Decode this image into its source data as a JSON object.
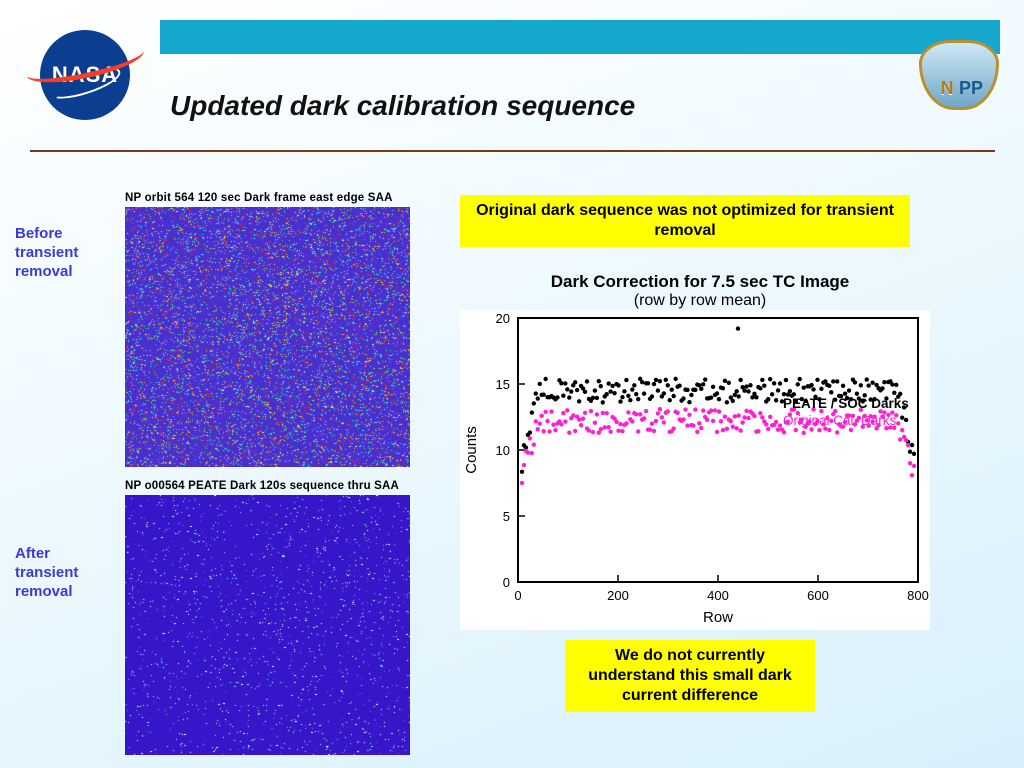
{
  "header": {
    "title": "Updated dark calibration sequence",
    "topbar_color": "#16a7cd",
    "rule_color": "#7a3a10"
  },
  "logos": {
    "nasa_text": "NASA",
    "npp_text_left": "N",
    "npp_text_mid": "PP"
  },
  "labels": {
    "before": "Before transient removal",
    "after": "After transient removal"
  },
  "images": {
    "before_title": "NP orbit 564 120 sec Dark frame east edge SAA",
    "after_title": "NP o00564 PEATE Dark 120s sequence thru SAA",
    "before": {
      "base_color": "#4a2fd0",
      "speckle_density": 0.55,
      "speckle_colors": [
        "#ff3020",
        "#ffb000",
        "#30e0ff",
        "#20ff90",
        "#f0f060",
        "#6040ff",
        "#2040c0"
      ]
    },
    "after": {
      "base_color": "#3616c8",
      "speckle_density": 0.08,
      "speckle_colors": [
        "#60d0ff",
        "#a0ffe0",
        "#ffffff",
        "#8060ff"
      ]
    }
  },
  "callouts": {
    "top": "Original dark sequence was not optimized for transient removal",
    "bottom": "We do not currently understand this small dark current difference",
    "bg": "#ffff00"
  },
  "chart": {
    "type": "scatter",
    "title": "Dark Correction for 7.5 sec TC Image",
    "subtitle": "(row by row mean)",
    "xlabel": "Row",
    "ylabel": "Counts",
    "xlim": [
      0,
      800
    ],
    "ylim": [
      0,
      20
    ],
    "xticks": [
      0,
      200,
      400,
      600,
      800
    ],
    "yticks": [
      0,
      5,
      10,
      15,
      20
    ],
    "tick_fontsize": 13,
    "label_fontsize": 15,
    "title_fontsize": 17,
    "background_color": "#ffffff",
    "axis_color": "#000000",
    "marker_size": 2.2,
    "series": [
      {
        "name": "PEATE / SOC Darks",
        "color": "#000000",
        "mean_plateau": 14.5,
        "spread": 0.9,
        "edge_drop_to": 7.5,
        "edge_width": 40,
        "n_points": 200,
        "outliers": [
          {
            "x": 440,
            "y": 19.2
          }
        ]
      },
      {
        "name": "Original Cal. Darks",
        "color": "#ff20d0",
        "mean_plateau": 12.2,
        "spread": 0.9,
        "edge_drop_to": 7.0,
        "edge_width": 40,
        "n_points": 200,
        "outliers": []
      }
    ],
    "legend": {
      "x": 530,
      "y_start": 13.2,
      "fontsize": 13.5,
      "items": [
        {
          "label": "PEATE / SOC Darks",
          "color": "#000000",
          "bold": true
        },
        {
          "label": "Original Cal. Darks",
          "color": "#ff20d0",
          "bold": false
        }
      ]
    }
  }
}
